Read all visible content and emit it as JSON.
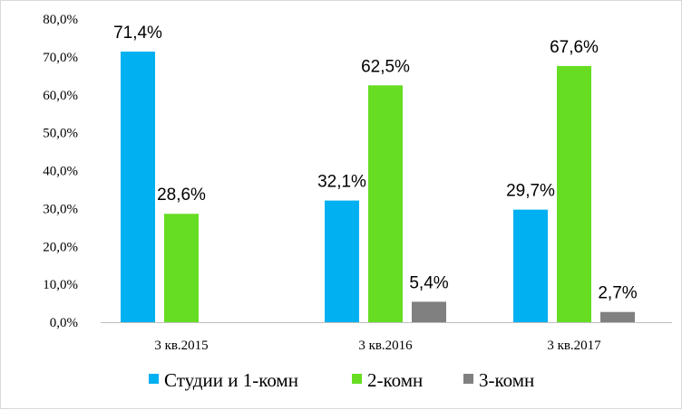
{
  "chart_data": {
    "type": "bar",
    "categories": [
      "3 кв.2015",
      "3 кв.2016",
      "3 кв.2017"
    ],
    "series": [
      {
        "name": "Студии и 1-комн",
        "color": "#00B0F0",
        "values": [
          71.4,
          32.1,
          29.7
        ],
        "labels": [
          "71,4%",
          "32,1%",
          "29,7%"
        ]
      },
      {
        "name": "2-комн",
        "color": "#66DD22",
        "values": [
          28.6,
          62.5,
          67.6
        ],
        "labels": [
          "28,6%",
          "62,5%",
          "67,6%"
        ]
      },
      {
        "name": "3-комн",
        "color": "#808080",
        "values": [
          0,
          5.4,
          2.7
        ],
        "labels": [
          "",
          "5,4%",
          "2,7%"
        ]
      }
    ],
    "ylim": [
      0,
      80
    ],
    "yticks": [
      "0,0%",
      "10,0%",
      "20,0%",
      "30,0%",
      "40,0%",
      "50,0%",
      "60,0%",
      "70,0%",
      "80,0%"
    ],
    "grid": false,
    "legend": "bottom"
  }
}
